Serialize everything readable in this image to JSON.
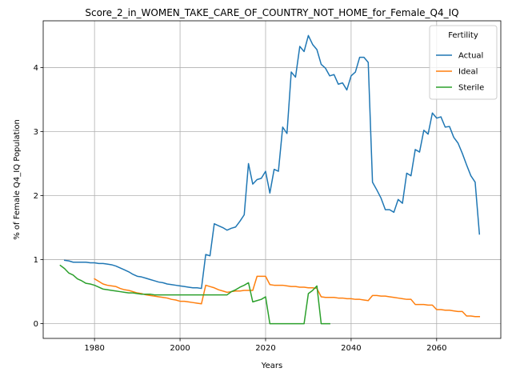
{
  "chart_data": {
    "type": "line",
    "title": "Score_2_in_WOMEN_TAKE_CARE_OF_COUNTRY_NOT_HOME_for_Female_Q4_IQ",
    "xlabel": "Years",
    "ylabel": "% of Female Q4_IQ Population",
    "xlim": [
      1968,
      2075
    ],
    "ylim": [
      -0.23,
      4.73
    ],
    "xticks": [
      1980,
      2000,
      2020,
      2040,
      2060
    ],
    "yticks": [
      0,
      1,
      2,
      3,
      4
    ],
    "grid": true,
    "legend": {
      "title": "Fertility",
      "placement": "top-right"
    },
    "series": [
      {
        "name": "Actual",
        "color": "#1f77b4",
        "points": [
          [
            1973,
            0.99
          ],
          [
            1974,
            0.98
          ],
          [
            1975,
            0.96
          ],
          [
            1976,
            0.96
          ],
          [
            1977,
            0.96
          ],
          [
            1978,
            0.96
          ],
          [
            1979,
            0.95
          ],
          [
            1980,
            0.95
          ],
          [
            1981,
            0.94
          ],
          [
            1982,
            0.94
          ],
          [
            1983,
            0.93
          ],
          [
            1984,
            0.92
          ],
          [
            1985,
            0.9
          ],
          [
            1986,
            0.87
          ],
          [
            1987,
            0.84
          ],
          [
            1988,
            0.81
          ],
          [
            1989,
            0.77
          ],
          [
            1990,
            0.74
          ],
          [
            1991,
            0.73
          ],
          [
            1992,
            0.71
          ],
          [
            1993,
            0.69
          ],
          [
            1994,
            0.67
          ],
          [
            1995,
            0.65
          ],
          [
            1996,
            0.64
          ],
          [
            1997,
            0.62
          ],
          [
            1998,
            0.61
          ],
          [
            1999,
            0.6
          ],
          [
            2000,
            0.59
          ],
          [
            2001,
            0.58
          ],
          [
            2002,
            0.57
          ],
          [
            2003,
            0.56
          ],
          [
            2004,
            0.56
          ],
          [
            2005,
            0.55
          ],
          [
            2006,
            1.08
          ],
          [
            2007,
            1.06
          ],
          [
            2008,
            1.56
          ],
          [
            2009,
            1.53
          ],
          [
            2010,
            1.5
          ],
          [
            2011,
            1.46
          ],
          [
            2012,
            1.49
          ],
          [
            2013,
            1.51
          ],
          [
            2014,
            1.6
          ],
          [
            2015,
            1.7
          ],
          [
            2016,
            2.5
          ],
          [
            2017,
            2.18
          ],
          [
            2018,
            2.25
          ],
          [
            2019,
            2.27
          ],
          [
            2020,
            2.38
          ],
          [
            2021,
            2.04
          ],
          [
            2022,
            2.41
          ],
          [
            2023,
            2.38
          ],
          [
            2024,
            3.07
          ],
          [
            2025,
            2.97
          ],
          [
            2026,
            3.93
          ],
          [
            2027,
            3.85
          ],
          [
            2028,
            4.33
          ],
          [
            2029,
            4.25
          ],
          [
            2030,
            4.5
          ],
          [
            2031,
            4.36
          ],
          [
            2032,
            4.28
          ],
          [
            2033,
            4.05
          ],
          [
            2034,
            3.99
          ],
          [
            2035,
            3.87
          ],
          [
            2036,
            3.89
          ],
          [
            2037,
            3.74
          ],
          [
            2038,
            3.76
          ],
          [
            2039,
            3.65
          ],
          [
            2040,
            3.87
          ],
          [
            2041,
            3.93
          ],
          [
            2042,
            4.16
          ],
          [
            2043,
            4.16
          ],
          [
            2044,
            4.08
          ],
          [
            2045,
            2.21
          ],
          [
            2046,
            2.09
          ],
          [
            2047,
            1.96
          ],
          [
            2048,
            1.78
          ],
          [
            2049,
            1.78
          ],
          [
            2050,
            1.74
          ],
          [
            2051,
            1.94
          ],
          [
            2052,
            1.88
          ],
          [
            2053,
            2.35
          ],
          [
            2054,
            2.31
          ],
          [
            2055,
            2.72
          ],
          [
            2056,
            2.68
          ],
          [
            2057,
            3.02
          ],
          [
            2058,
            2.96
          ],
          [
            2059,
            3.29
          ],
          [
            2060,
            3.21
          ],
          [
            2061,
            3.23
          ],
          [
            2062,
            3.07
          ],
          [
            2063,
            3.08
          ],
          [
            2064,
            2.91
          ],
          [
            2065,
            2.82
          ],
          [
            2066,
            2.66
          ],
          [
            2067,
            2.48
          ],
          [
            2068,
            2.31
          ],
          [
            2069,
            2.21
          ],
          [
            2070,
            1.4
          ]
        ]
      },
      {
        "name": "Ideal",
        "color": "#ff7f0e",
        "points": [
          [
            1980,
            0.7
          ],
          [
            1981,
            0.66
          ],
          [
            1982,
            0.62
          ],
          [
            1983,
            0.6
          ],
          [
            1984,
            0.59
          ],
          [
            1985,
            0.58
          ],
          [
            1986,
            0.55
          ],
          [
            1987,
            0.53
          ],
          [
            1988,
            0.52
          ],
          [
            1989,
            0.5
          ],
          [
            1990,
            0.48
          ],
          [
            1991,
            0.47
          ],
          [
            1992,
            0.45
          ],
          [
            1993,
            0.44
          ],
          [
            1994,
            0.43
          ],
          [
            1995,
            0.42
          ],
          [
            1996,
            0.41
          ],
          [
            1997,
            0.4
          ],
          [
            1998,
            0.38
          ],
          [
            1999,
            0.37
          ],
          [
            2000,
            0.35
          ],
          [
            2001,
            0.35
          ],
          [
            2002,
            0.34
          ],
          [
            2003,
            0.33
          ],
          [
            2004,
            0.32
          ],
          [
            2005,
            0.31
          ],
          [
            2006,
            0.6
          ],
          [
            2007,
            0.58
          ],
          [
            2008,
            0.56
          ],
          [
            2009,
            0.53
          ],
          [
            2010,
            0.51
          ],
          [
            2011,
            0.49
          ],
          [
            2012,
            0.5
          ],
          [
            2013,
            0.51
          ],
          [
            2014,
            0.51
          ],
          [
            2015,
            0.52
          ],
          [
            2016,
            0.52
          ],
          [
            2017,
            0.52
          ],
          [
            2018,
            0.74
          ],
          [
            2019,
            0.74
          ],
          [
            2020,
            0.74
          ],
          [
            2021,
            0.61
          ],
          [
            2022,
            0.6
          ],
          [
            2023,
            0.6
          ],
          [
            2024,
            0.6
          ],
          [
            2025,
            0.59
          ],
          [
            2026,
            0.58
          ],
          [
            2027,
            0.58
          ],
          [
            2028,
            0.57
          ],
          [
            2029,
            0.57
          ],
          [
            2030,
            0.56
          ],
          [
            2031,
            0.56
          ],
          [
            2032,
            0.55
          ],
          [
            2033,
            0.42
          ],
          [
            2034,
            0.41
          ],
          [
            2035,
            0.41
          ],
          [
            2036,
            0.41
          ],
          [
            2037,
            0.4
          ],
          [
            2038,
            0.4
          ],
          [
            2039,
            0.39
          ],
          [
            2040,
            0.39
          ],
          [
            2041,
            0.38
          ],
          [
            2042,
            0.38
          ],
          [
            2043,
            0.37
          ],
          [
            2044,
            0.36
          ],
          [
            2045,
            0.44
          ],
          [
            2046,
            0.44
          ],
          [
            2047,
            0.43
          ],
          [
            2048,
            0.43
          ],
          [
            2049,
            0.42
          ],
          [
            2050,
            0.41
          ],
          [
            2051,
            0.4
          ],
          [
            2052,
            0.39
          ],
          [
            2053,
            0.38
          ],
          [
            2054,
            0.38
          ],
          [
            2055,
            0.3
          ],
          [
            2056,
            0.3
          ],
          [
            2057,
            0.3
          ],
          [
            2058,
            0.29
          ],
          [
            2059,
            0.29
          ],
          [
            2060,
            0.22
          ],
          [
            2061,
            0.22
          ],
          [
            2062,
            0.21
          ],
          [
            2063,
            0.21
          ],
          [
            2064,
            0.2
          ],
          [
            2065,
            0.19
          ],
          [
            2066,
            0.19
          ],
          [
            2067,
            0.12
          ],
          [
            2068,
            0.12
          ],
          [
            2069,
            0.11
          ],
          [
            2070,
            0.11
          ]
        ]
      },
      {
        "name": "Sterile",
        "color": "#2ca02c",
        "points": [
          [
            1972,
            0.91
          ],
          [
            1973,
            0.86
          ],
          [
            1974,
            0.79
          ],
          [
            1975,
            0.76
          ],
          [
            1976,
            0.7
          ],
          [
            1977,
            0.67
          ],
          [
            1978,
            0.63
          ],
          [
            1979,
            0.62
          ],
          [
            1980,
            0.6
          ],
          [
            1981,
            0.57
          ],
          [
            1982,
            0.54
          ],
          [
            1983,
            0.53
          ],
          [
            1984,
            0.52
          ],
          [
            1985,
            0.51
          ],
          [
            1986,
            0.5
          ],
          [
            1987,
            0.49
          ],
          [
            1988,
            0.48
          ],
          [
            1989,
            0.48
          ],
          [
            1990,
            0.47
          ],
          [
            1991,
            0.46
          ],
          [
            1992,
            0.46
          ],
          [
            1993,
            0.46
          ],
          [
            1994,
            0.45
          ],
          [
            1995,
            0.45
          ],
          [
            1996,
            0.45
          ],
          [
            1997,
            0.45
          ],
          [
            1998,
            0.45
          ],
          [
            1999,
            0.45
          ],
          [
            2000,
            0.45
          ],
          [
            2001,
            0.45
          ],
          [
            2002,
            0.45
          ],
          [
            2003,
            0.45
          ],
          [
            2004,
            0.45
          ],
          [
            2005,
            0.45
          ],
          [
            2006,
            0.45
          ],
          [
            2007,
            0.45
          ],
          [
            2008,
            0.45
          ],
          [
            2009,
            0.45
          ],
          [
            2010,
            0.45
          ],
          [
            2011,
            0.45
          ],
          [
            2012,
            0.5
          ],
          [
            2013,
            0.53
          ],
          [
            2014,
            0.57
          ],
          [
            2015,
            0.6
          ],
          [
            2016,
            0.64
          ],
          [
            2017,
            0.34
          ],
          [
            2018,
            0.36
          ],
          [
            2019,
            0.38
          ],
          [
            2020,
            0.42
          ],
          [
            2021,
            0.0
          ],
          [
            2022,
            0.0
          ],
          [
            2023,
            0.0
          ],
          [
            2024,
            0.0
          ],
          [
            2025,
            0.0
          ],
          [
            2026,
            0.0
          ],
          [
            2027,
            0.0
          ],
          [
            2028,
            0.0
          ],
          [
            2029,
            0.0
          ],
          [
            2030,
            0.47
          ],
          [
            2031,
            0.52
          ],
          [
            2032,
            0.59
          ],
          [
            2033,
            0.0
          ],
          [
            2034,
            0.0
          ],
          [
            2035,
            0.0
          ]
        ]
      }
    ]
  }
}
